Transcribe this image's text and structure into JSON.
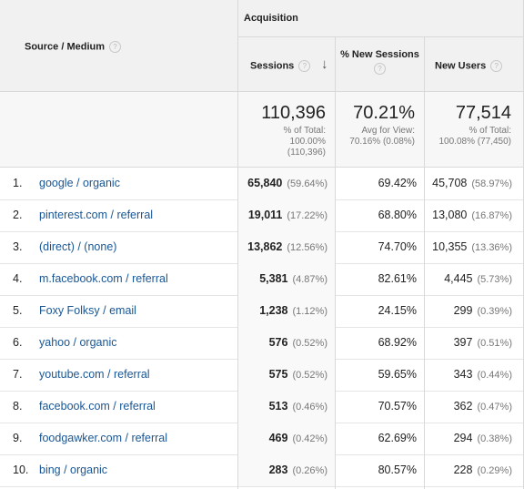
{
  "header": {
    "dimension_label": "Source / Medium",
    "group_label": "Acquisition",
    "columns": {
      "sessions": "Sessions",
      "new_sessions": "% New Sessions",
      "new_users": "New Users"
    },
    "help_glyph": "?",
    "sort_glyph": "↓"
  },
  "totals": {
    "sessions": {
      "value": "110,396",
      "line1": "% of Total:",
      "line2": "100.00%",
      "line3": "(110,396)"
    },
    "new_sessions": {
      "value": "70.21%",
      "line1": "Avg for View:",
      "line2": "70.16% (0.08%)"
    },
    "new_users": {
      "value": "77,514",
      "line1": "% of Total:",
      "line2": "100.08% (77,450)"
    }
  },
  "rows": [
    {
      "idx": "1.",
      "source": "google / organic",
      "sessions": "65,840",
      "sessions_pct": "(59.64%)",
      "new_sessions": "69.42%",
      "new_users": "45,708",
      "new_users_pct": "(58.97%)"
    },
    {
      "idx": "2.",
      "source": "pinterest.com / referral",
      "sessions": "19,011",
      "sessions_pct": "(17.22%)",
      "new_sessions": "68.80%",
      "new_users": "13,080",
      "new_users_pct": "(16.87%)"
    },
    {
      "idx": "3.",
      "source": "(direct) / (none)",
      "sessions": "13,862",
      "sessions_pct": "(12.56%)",
      "new_sessions": "74.70%",
      "new_users": "10,355",
      "new_users_pct": "(13.36%)"
    },
    {
      "idx": "4.",
      "source": "m.facebook.com / referral",
      "sessions": "5,381",
      "sessions_pct": "(4.87%)",
      "new_sessions": "82.61%",
      "new_users": "4,445",
      "new_users_pct": "(5.73%)"
    },
    {
      "idx": "5.",
      "source": "Foxy Folksy / email",
      "sessions": "1,238",
      "sessions_pct": "(1.12%)",
      "new_sessions": "24.15%",
      "new_users": "299",
      "new_users_pct": "(0.39%)"
    },
    {
      "idx": "6.",
      "source": "yahoo / organic",
      "sessions": "576",
      "sessions_pct": "(0.52%)",
      "new_sessions": "68.92%",
      "new_users": "397",
      "new_users_pct": "(0.51%)"
    },
    {
      "idx": "7.",
      "source": "youtube.com / referral",
      "sessions": "575",
      "sessions_pct": "(0.52%)",
      "new_sessions": "59.65%",
      "new_users": "343",
      "new_users_pct": "(0.44%)"
    },
    {
      "idx": "8.",
      "source": "facebook.com / referral",
      "sessions": "513",
      "sessions_pct": "(0.46%)",
      "new_sessions": "70.57%",
      "new_users": "362",
      "new_users_pct": "(0.47%)"
    },
    {
      "idx": "9.",
      "source": "foodgawker.com / referral",
      "sessions": "469",
      "sessions_pct": "(0.42%)",
      "new_sessions": "62.69%",
      "new_users": "294",
      "new_users_pct": "(0.38%)"
    },
    {
      "idx": "10.",
      "source": "bing / organic",
      "sessions": "283",
      "sessions_pct": "(0.26%)",
      "new_sessions": "80.57%",
      "new_users": "228",
      "new_users_pct": "(0.29%)"
    }
  ]
}
